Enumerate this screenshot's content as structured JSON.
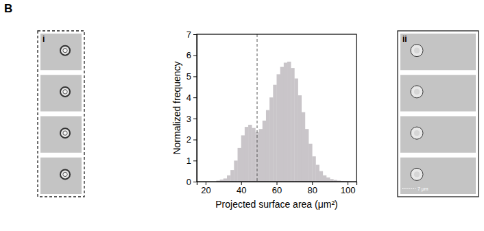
{
  "panel_label": "B",
  "chart_data": {
    "type": "histogram",
    "bins": [
      20,
      22,
      24,
      26,
      28,
      30,
      32,
      34,
      36,
      38,
      40,
      42,
      44,
      46,
      48,
      50,
      52,
      54,
      56,
      58,
      60,
      62,
      64,
      66,
      68,
      70,
      72,
      74,
      76,
      78,
      80,
      82,
      84,
      86,
      88,
      90,
      92,
      94,
      96,
      98,
      100,
      102,
      104
    ],
    "values": [
      0,
      0,
      0,
      0.05,
      0.1,
      0.15,
      0.3,
      0.55,
      1.0,
      1.6,
      2.2,
      2.6,
      2.7,
      2.55,
      2.35,
      2.5,
      2.9,
      3.4,
      4.0,
      4.6,
      5.1,
      5.45,
      5.65,
      5.7,
      5.4,
      4.9,
      4.1,
      3.3,
      2.5,
      1.8,
      1.2,
      0.8,
      0.5,
      0.3,
      0.2,
      0.12,
      0.08,
      0.05,
      0.03,
      0.02,
      0.01,
      0
    ],
    "color": "#c9c5c9",
    "xlim": [
      15,
      105
    ],
    "ylim": [
      0,
      7
    ],
    "xticks": [
      20,
      40,
      60,
      80,
      100
    ],
    "yticks": [
      0,
      1,
      2,
      3,
      4,
      5,
      6,
      7
    ],
    "x_label": "Projected surface area (μm²)",
    "y_label": "Normalized frequency",
    "threshold": 49
  },
  "image_panels": [
    {
      "label": "i"
    },
    {
      "label": "ii",
      "scale_bar": "7 μm"
    }
  ]
}
